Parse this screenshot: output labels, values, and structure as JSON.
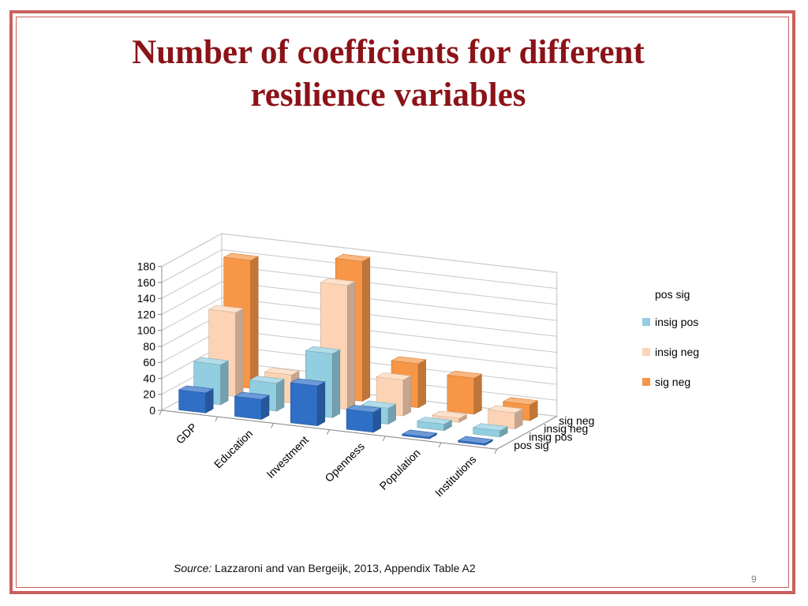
{
  "slide": {
    "title_line1": "Number of coefficients for different",
    "title_line2": "resilience variables",
    "source_label": "Source:",
    "source_text": " Lazzaroni and van Bergeijk, 2013, Appendix Table A2",
    "page_number": "9"
  },
  "colors": {
    "frame": "#c9605c",
    "title": "#8b1318"
  },
  "chart_data": {
    "type": "bar",
    "subtype": "3d-clustered-column",
    "title": "",
    "xlabel": "",
    "ylabel": "",
    "categories": [
      "GDP",
      "Education",
      "Investment",
      "Openness",
      "Population",
      "Institutions"
    ],
    "series_axis_labels": [
      "pos sig",
      "insig pos",
      "insig neg",
      "sig neg"
    ],
    "series": [
      {
        "name": "pos sig",
        "color": "#2f6fc6",
        "values": [
          25,
          25,
          50,
          25,
          2,
          2
        ]
      },
      {
        "name": "insig pos",
        "color": "#92cde0",
        "values": [
          50,
          35,
          80,
          20,
          8,
          8
        ]
      },
      {
        "name": "insig neg",
        "color": "#fcd4b5",
        "values": [
          105,
          35,
          155,
          45,
          5,
          20
        ]
      },
      {
        "name": "sig neg",
        "color": "#f79646",
        "values": [
          160,
          2,
          175,
          55,
          45,
          20
        ]
      }
    ],
    "legend": {
      "title": "pos sig",
      "entries": [
        "insig pos",
        "insig neg",
        "sig neg"
      ],
      "position": "right"
    },
    "yticks": [
      "0",
      "20",
      "40",
      "60",
      "80",
      "100",
      "120",
      "140",
      "160",
      "180"
    ],
    "ylim": [
      0,
      180
    ],
    "grid": true
  }
}
